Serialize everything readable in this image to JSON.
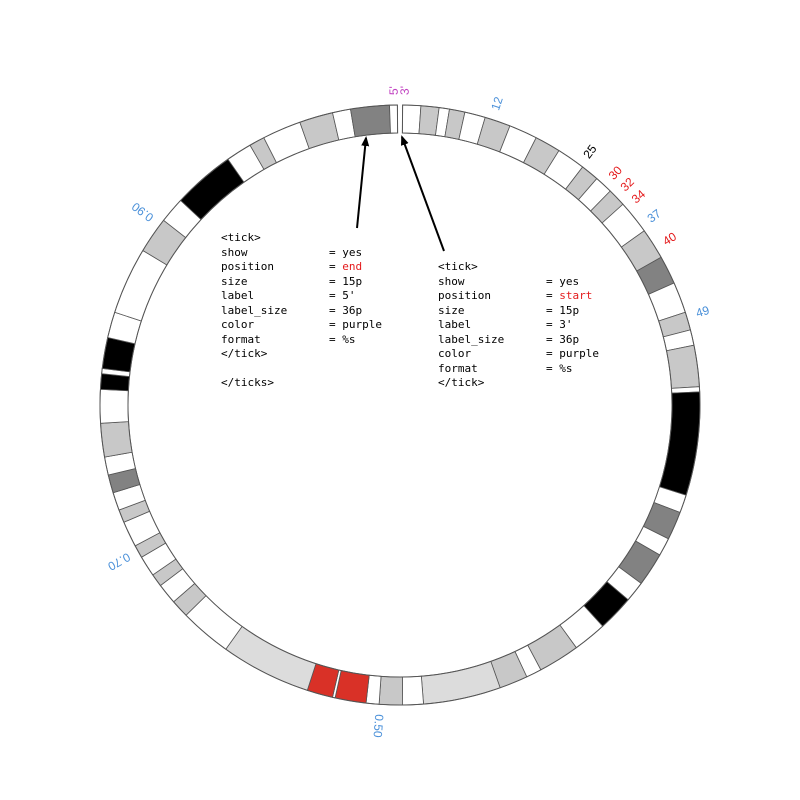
{
  "colors": {
    "band_stroke": "#555555",
    "arrow": "#000000",
    "highlight_text": "#e41a1c",
    "tick_blue": "#4a90d9",
    "tick_red": "#e41a1c",
    "tick_purple": "#c040c0",
    "tick_black": "#000000"
  },
  "ideogram": {
    "bands": [
      {
        "from": 0.5,
        "to": 4.0,
        "color": "#ffffff"
      },
      {
        "from": 4.0,
        "to": 7.5,
        "color": "#c8c8c8"
      },
      {
        "from": 7.5,
        "to": 9.5,
        "color": "#ffffff"
      },
      {
        "from": 9.5,
        "to": 12.5,
        "color": "#c8c8c8"
      },
      {
        "from": 12.5,
        "to": 16.5,
        "color": "#ffffff"
      },
      {
        "from": 16.5,
        "to": 21.5,
        "color": "#c8c8c8"
      },
      {
        "from": 21.5,
        "to": 27.0,
        "color": "#ffffff"
      },
      {
        "from": 27.0,
        "to": 32.0,
        "color": "#c8c8c8"
      },
      {
        "from": 32.0,
        "to": 37.5,
        "color": "#ffffff"
      },
      {
        "from": 37.5,
        "to": 41.0,
        "color": "#c8c8c8"
      },
      {
        "from": 41.0,
        "to": 44.5,
        "color": "#ffffff"
      },
      {
        "from": 44.5,
        "to": 48.0,
        "color": "#c8c8c8"
      },
      {
        "from": 48.0,
        "to": 54.5,
        "color": "#ffffff"
      },
      {
        "from": 54.5,
        "to": 60.5,
        "color": "#c8c8c8"
      },
      {
        "from": 60.5,
        "to": 66.0,
        "color": "#828282"
      },
      {
        "from": 66.0,
        "to": 72.0,
        "color": "#ffffff"
      },
      {
        "from": 72.0,
        "to": 75.5,
        "color": "#c8c8c8"
      },
      {
        "from": 75.5,
        "to": 78.5,
        "color": "#ffffff"
      },
      {
        "from": 78.5,
        "to": 86.5,
        "color": "#c8c8c8"
      },
      {
        "from": 86.5,
        "to": 87.5,
        "color": "#ffffff"
      },
      {
        "from": 87.5,
        "to": 107.5,
        "color": "#000000"
      },
      {
        "from": 107.5,
        "to": 111.0,
        "color": "#ffffff"
      },
      {
        "from": 111.0,
        "to": 116.5,
        "color": "#828282"
      },
      {
        "from": 116.5,
        "to": 120.0,
        "color": "#ffffff"
      },
      {
        "from": 120.0,
        "to": 126.5,
        "color": "#828282"
      },
      {
        "from": 126.5,
        "to": 130.5,
        "color": "#ffffff"
      },
      {
        "from": 130.5,
        "to": 137.5,
        "color": "#000000"
      },
      {
        "from": 137.5,
        "to": 144.0,
        "color": "#ffffff"
      },
      {
        "from": 144.0,
        "to": 152.0,
        "color": "#c8c8c8"
      },
      {
        "from": 152.0,
        "to": 155.0,
        "color": "#ffffff"
      },
      {
        "from": 155.0,
        "to": 160.5,
        "color": "#c8c8c8"
      },
      {
        "from": 160.5,
        "to": 175.5,
        "color": "#dcdcdc"
      },
      {
        "from": 175.5,
        "to": 179.5,
        "color": "#ffffff"
      },
      {
        "from": 179.5,
        "to": 184.0,
        "color": "#c8c8c8"
      },
      {
        "from": 184.0,
        "to": 186.5,
        "color": "#ffffff"
      },
      {
        "from": 186.5,
        "to": 192.5,
        "color": "#d93127"
      },
      {
        "from": 192.5,
        "to": 193.0,
        "color": "#ffffff"
      },
      {
        "from": 193.0,
        "to": 198.0,
        "color": "#d93127"
      },
      {
        "from": 198.0,
        "to": 215.5,
        "color": "#dcdcdc"
      },
      {
        "from": 215.5,
        "to": 225.5,
        "color": "#ffffff"
      },
      {
        "from": 225.5,
        "to": 229.0,
        "color": "#c8c8c8"
      },
      {
        "from": 229.0,
        "to": 233.0,
        "color": "#ffffff"
      },
      {
        "from": 233.0,
        "to": 235.5,
        "color": "#c8c8c8"
      },
      {
        "from": 235.5,
        "to": 239.5,
        "color": "#ffffff"
      },
      {
        "from": 239.5,
        "to": 242.0,
        "color": "#c8c8c8"
      },
      {
        "from": 242.0,
        "to": 247.0,
        "color": "#ffffff"
      },
      {
        "from": 247.0,
        "to": 249.5,
        "color": "#c8c8c8"
      },
      {
        "from": 249.5,
        "to": 253.0,
        "color": "#ffffff"
      },
      {
        "from": 253.0,
        "to": 256.5,
        "color": "#828282"
      },
      {
        "from": 256.5,
        "to": 260.0,
        "color": "#ffffff"
      },
      {
        "from": 260.0,
        "to": 266.5,
        "color": "#c8c8c8"
      },
      {
        "from": 266.5,
        "to": 273.0,
        "color": "#ffffff"
      },
      {
        "from": 273.0,
        "to": 276.0,
        "color": "#000000"
      },
      {
        "from": 276.0,
        "to": 277.0,
        "color": "#ffffff"
      },
      {
        "from": 277.0,
        "to": 283.0,
        "color": "#000000"
      },
      {
        "from": 283.0,
        "to": 288.0,
        "color": "#ffffff"
      },
      {
        "from": 288.0,
        "to": 301.0,
        "color": "#ffffff"
      },
      {
        "from": 301.0,
        "to": 308.0,
        "color": "#c8c8c8"
      },
      {
        "from": 308.0,
        "to": 313.0,
        "color": "#ffffff"
      },
      {
        "from": 313.0,
        "to": 325.0,
        "color": "#000000"
      },
      {
        "from": 325.0,
        "to": 330.0,
        "color": "#ffffff"
      },
      {
        "from": 330.0,
        "to": 333.0,
        "color": "#c8c8c8"
      },
      {
        "from": 333.0,
        "to": 340.5,
        "color": "#ffffff"
      },
      {
        "from": 340.5,
        "to": 347.0,
        "color": "#c8c8c8"
      },
      {
        "from": 347.0,
        "to": 350.5,
        "color": "#ffffff"
      },
      {
        "from": 350.5,
        "to": 358.0,
        "color": "#828282"
      },
      {
        "from": 358.0,
        "to": 359.5,
        "color": "#ffffff"
      }
    ]
  },
  "tick_labels": [
    {
      "text": "12",
      "angle": 18,
      "color": "blue"
    },
    {
      "text": "25",
      "angle": 37,
      "color": "black"
    },
    {
      "text": "30",
      "angle": 43,
      "color": "red"
    },
    {
      "text": "32",
      "angle": 46,
      "color": "red"
    },
    {
      "text": "34",
      "angle": 49,
      "color": "red"
    },
    {
      "text": "37",
      "angle": 53.5,
      "color": "blue"
    },
    {
      "text": "40",
      "angle": 58.5,
      "color": "red"
    },
    {
      "text": "49",
      "angle": 73,
      "color": "blue"
    },
    {
      "text": "0.50",
      "angle": 184,
      "color": "blue"
    },
    {
      "text": "0.70",
      "angle": 241,
      "color": "blue"
    },
    {
      "text": "0.90",
      "angle": 307,
      "color": "blue"
    },
    {
      "text": "5'",
      "angle": 359,
      "color": "purple"
    },
    {
      "text": "3'",
      "angle": 1,
      "color": "purple"
    }
  ],
  "code_left": {
    "lines": [
      {
        "key": "<tick>",
        "val": ""
      },
      {
        "key": "show",
        "val": "= yes"
      },
      {
        "key": "position",
        "val": "= ",
        "hl": "end"
      },
      {
        "key": "size",
        "val": "= 15p"
      },
      {
        "key": "label",
        "val": "= 5'"
      },
      {
        "key": "label_size",
        "val": "= 36p"
      },
      {
        "key": "color",
        "val": "= purple"
      },
      {
        "key": "format",
        "val": "= %s"
      },
      {
        "key": "</tick>",
        "val": ""
      },
      {
        "key": "",
        "val": ""
      },
      {
        "key": "</ticks>",
        "val": ""
      }
    ]
  },
  "code_right": {
    "lines": [
      {
        "key": "<tick>",
        "val": ""
      },
      {
        "key": "show",
        "val": "= yes"
      },
      {
        "key": "position",
        "val": "= ",
        "hl": "start"
      },
      {
        "key": "size",
        "val": "= 15p"
      },
      {
        "key": "label",
        "val": "= 3'"
      },
      {
        "key": "label_size",
        "val": "= 36p"
      },
      {
        "key": "color",
        "val": "= purple"
      },
      {
        "key": "format",
        "val": "= %s"
      },
      {
        "key": "</tick>",
        "val": ""
      }
    ]
  }
}
